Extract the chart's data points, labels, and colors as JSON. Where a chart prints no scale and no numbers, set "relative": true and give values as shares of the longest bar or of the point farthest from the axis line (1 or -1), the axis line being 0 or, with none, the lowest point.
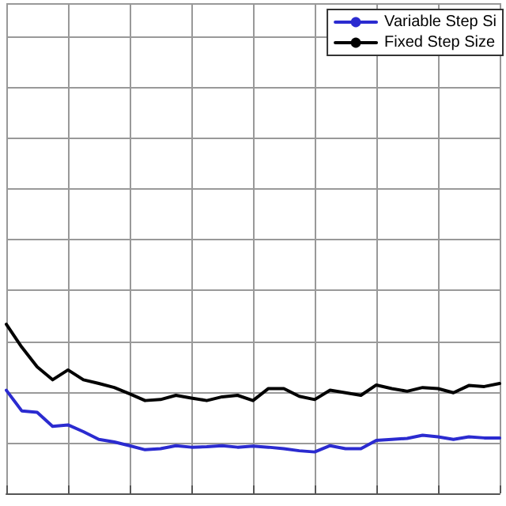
{
  "chart_data": {
    "type": "line",
    "relative": true,
    "grid": true,
    "legend": "top right",
    "categories": [
      null,
      null,
      null,
      null,
      null,
      null,
      null,
      null,
      null,
      null,
      null,
      null,
      null,
      null,
      null,
      null,
      null,
      null,
      null,
      null,
      null,
      null,
      null,
      null,
      null,
      null,
      null,
      null,
      null,
      null,
      null,
      null,
      null
    ],
    "series": [
      {
        "name": "Variable Step Si",
        "color": "#2b2bd0",
        "values": [
          0.61,
          0.488,
          0.479,
          0.396,
          0.405,
          0.365,
          0.319,
          0.304,
          0.282,
          0.258,
          0.264,
          0.282,
          0.273,
          0.276,
          0.282,
          0.273,
          0.279,
          0.273,
          0.264,
          0.252,
          0.245,
          0.282,
          0.264,
          0.264,
          0.313,
          0.319,
          0.325,
          0.344,
          0.334,
          0.319,
          0.334,
          0.328,
          0.328
        ]
      },
      {
        "name": "Fixed Step Size",
        "color": "#000000",
        "values": [
          1,
          0.865,
          0.748,
          0.672,
          0.73,
          0.672,
          0.65,
          0.626,
          0.589,
          0.549,
          0.555,
          0.58,
          0.564,
          0.549,
          0.571,
          0.58,
          0.549,
          0.62,
          0.62,
          0.574,
          0.555,
          0.61,
          0.595,
          0.58,
          0.641,
          0.62,
          0.604,
          0.626,
          0.62,
          0.595,
          0.638,
          0.632,
          0.65
        ]
      }
    ]
  }
}
